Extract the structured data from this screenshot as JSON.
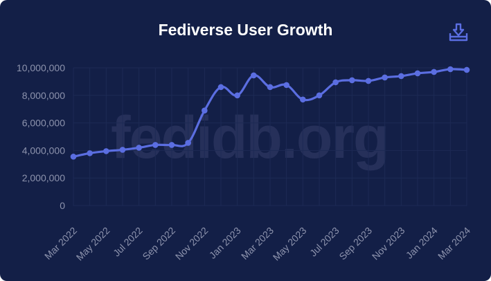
{
  "chart_data": {
    "type": "line",
    "title": "Fediverse User Growth",
    "watermark": "fedidb.org",
    "ylim": [
      0,
      10000000
    ],
    "yticks": [
      "0",
      "2,000,000",
      "4,000,000",
      "6,000,000",
      "8,000,000",
      "10,000,000"
    ],
    "xtick_labels": [
      "Mar 2022",
      "May 2022",
      "Jul 2022",
      "Sep 2022",
      "Nov 2022",
      "Jan 2023",
      "Mar 2023",
      "May 2023",
      "Jul 2023",
      "Sep 2023",
      "Nov 2023",
      "Jan 2024",
      "Mar 2024"
    ],
    "x": [
      "Mar 2022",
      "Apr 2022",
      "May 2022",
      "Jun 2022",
      "Jul 2022",
      "Aug 2022",
      "Sep 2022",
      "Oct 2022",
      "Nov 2022",
      "Dec 2022",
      "Jan 2023",
      "Feb 2023",
      "Mar 2023",
      "Apr 2023",
      "May 2023",
      "Jun 2023",
      "Jul 2023",
      "Aug 2023",
      "Sep 2023",
      "Oct 2023",
      "Nov 2023",
      "Dec 2023",
      "Jan 2024",
      "Feb 2024",
      "Mar 2024"
    ],
    "series": [
      {
        "color": "#5b6ee1",
        "values": [
          3550000,
          3800000,
          3950000,
          4050000,
          4200000,
          4400000,
          4400000,
          4550000,
          6900000,
          8600000,
          8000000,
          9450000,
          8600000,
          8750000,
          7700000,
          8000000,
          8950000,
          9100000,
          9050000,
          9300000,
          9400000,
          9600000,
          9700000,
          9900000,
          9850000
        ]
      }
    ],
    "grid": true,
    "legend": "none"
  },
  "icons": {
    "download": "download-icon"
  },
  "colors": {
    "background": "#131f47",
    "line": "#5b6ee1",
    "title": "#ffffff"
  }
}
